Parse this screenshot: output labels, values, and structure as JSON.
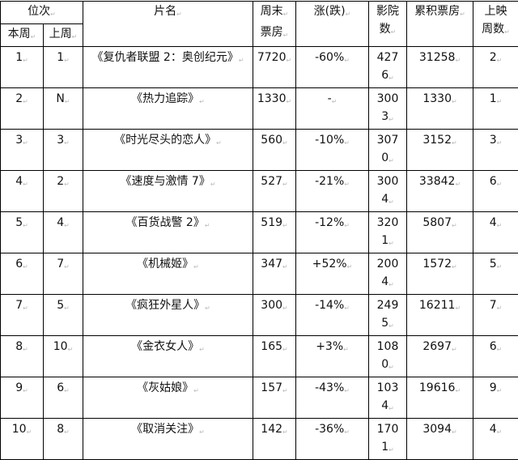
{
  "headers": {
    "rank": "位次",
    "this_week": "本周",
    "last_week": "上周",
    "title": "片名",
    "weekend_box_1": "周末",
    "weekend_box_2": "票房",
    "change": "涨(跌)",
    "cinemas_1": "影院",
    "cinemas_2": "数",
    "cumulative": "累积票房",
    "weeks_1": "上映",
    "weeks_2": "周数"
  },
  "rows": [
    {
      "this_week": "1",
      "last_week": "1",
      "title": "《复仇者联盟 2：奥创纪元》",
      "weekend": "7720",
      "change": "-60%",
      "cinemas": "4276",
      "cumulative": "31258",
      "weeks": "2"
    },
    {
      "this_week": "2",
      "last_week": "N",
      "title": "《热力追踪》",
      "weekend": "1330",
      "change": "-",
      "cinemas": "3003",
      "cumulative": "1330",
      "weeks": "1"
    },
    {
      "this_week": "3",
      "last_week": "3",
      "title": "《时光尽头的恋人》",
      "weekend": "560",
      "change": "-10%",
      "cinemas": "3070",
      "cumulative": "3152",
      "weeks": "3"
    },
    {
      "this_week": "4",
      "last_week": "2",
      "title": "《速度与激情 7》",
      "weekend": "527",
      "change": "-21%",
      "cinemas": "3004",
      "cumulative": "33842",
      "weeks": "6"
    },
    {
      "this_week": "5",
      "last_week": "4",
      "title": "《百货战警 2》",
      "weekend": "519",
      "change": "-12%",
      "cinemas": "3201",
      "cumulative": "5807",
      "weeks": "4"
    },
    {
      "this_week": "6",
      "last_week": "7",
      "title": "《机械姬》",
      "weekend": "347",
      "change": "+52%",
      "cinemas": "2004",
      "cumulative": "1572",
      "weeks": "5"
    },
    {
      "this_week": "7",
      "last_week": "5",
      "title": "《疯狂外星人》",
      "weekend": "300",
      "change": "-14%",
      "cinemas": "2495",
      "cumulative": "16211",
      "weeks": "7"
    },
    {
      "this_week": "8",
      "last_week": "10",
      "title": "《金衣女人》",
      "weekend": "165",
      "change": "+3%",
      "cinemas": "1080",
      "cumulative": "2697",
      "weeks": "6"
    },
    {
      "this_week": "9",
      "last_week": "6",
      "title": "《灰姑娘》",
      "weekend": "157",
      "change": "-43%",
      "cinemas": "1034",
      "cumulative": "19616",
      "weeks": "9"
    },
    {
      "this_week": "10",
      "last_week": "8",
      "title": "《取消关注》",
      "weekend": "142",
      "change": "-36%",
      "cinemas": "1701",
      "cumulative": "3094",
      "weeks": "4"
    }
  ]
}
